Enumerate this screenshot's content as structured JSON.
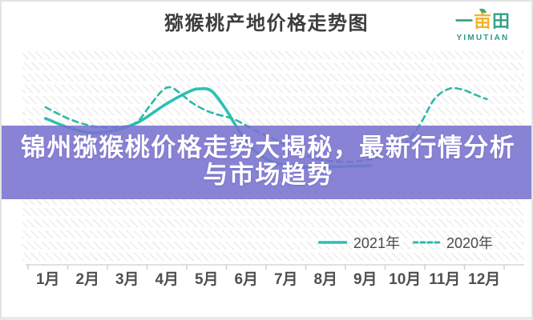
{
  "header": {
    "title": "猕猴桃产地价格走势图"
  },
  "logo": {
    "char1": "一",
    "char2": "亩",
    "char3": "田",
    "subtext": "YIMUTIAN",
    "green": "#33a288",
    "yellow": "#f2b32b",
    "teal": "#2d9b8a"
  },
  "overlay": {
    "line1": "锦州猕猴桃价格走势大揭秘，最新行情分析",
    "line2": "与市场趋势",
    "bg_rgba": "rgba(119,112,207,0.87)"
  },
  "axis_color": "#d8d8d8",
  "tick_color": "#cfcfcf",
  "month_label_color": "#4f4f4f",
  "chart_data": {
    "type": "line",
    "title": "猕猴桃产地价格走势图",
    "x_categories": [
      "1月",
      "2月",
      "3月",
      "4月",
      "5月",
      "6月",
      "7月",
      "8月",
      "9月",
      "10月",
      "11月",
      "12月"
    ],
    "y_axis_visible": false,
    "units": "relative price level (no y-axis scale shown in image)",
    "grid": false,
    "legend_position": "bottom-right",
    "series": [
      {
        "name": "2021年",
        "style": "solid",
        "color": "#29c1b2",
        "monthly_values": [
          6.4,
          4.7,
          5.5,
          8.2,
          10.0,
          3.7,
          0.4,
          0.3,
          0.5,
          null,
          null,
          null
        ],
        "points": [
          [
            0.94,
            6.4
          ],
          [
            1.55,
            5.2
          ],
          [
            2.1,
            4.6
          ],
          [
            2.66,
            4.9
          ],
          [
            3.27,
            5.9
          ],
          [
            3.98,
            8.2
          ],
          [
            4.58,
            9.8
          ],
          [
            4.84,
            10.1
          ],
          [
            5.13,
            9.8
          ],
          [
            5.49,
            7.5
          ],
          [
            5.9,
            4.2
          ],
          [
            6.3,
            2.0
          ],
          [
            6.7,
            0.9
          ],
          [
            7.21,
            0.4
          ],
          [
            7.81,
            0.3
          ],
          [
            8.52,
            0.4
          ],
          [
            9.13,
            0.5
          ]
        ]
      },
      {
        "name": "2020年",
        "style": "dashed",
        "color": "#2db9aa",
        "monthly_values": [
          7.8,
          5.5,
          5.6,
          10.1,
          7.2,
          5.5,
          3.0,
          1.2,
          1.1,
          3.3,
          9.7,
          8.8
        ],
        "points": [
          [
            0.94,
            7.8
          ],
          [
            1.55,
            6.3
          ],
          [
            2.16,
            5.4
          ],
          [
            2.76,
            5.3
          ],
          [
            3.23,
            5.9
          ],
          [
            3.57,
            8.0
          ],
          [
            3.87,
            9.8
          ],
          [
            4.08,
            10.3
          ],
          [
            4.32,
            9.6
          ],
          [
            4.68,
            8.2
          ],
          [
            5.13,
            7.1
          ],
          [
            5.69,
            6.3
          ],
          [
            6.3,
            4.7
          ],
          [
            6.8,
            3.6
          ],
          [
            7.31,
            2.1
          ],
          [
            7.81,
            1.3
          ],
          [
            8.32,
            1.0
          ],
          [
            8.93,
            1.1
          ],
          [
            9.53,
            2.0
          ],
          [
            10.04,
            3.4
          ],
          [
            10.4,
            5.8
          ],
          [
            10.74,
            8.8
          ],
          [
            11.11,
            10.1
          ],
          [
            11.45,
            10.0
          ],
          [
            11.75,
            9.4
          ],
          [
            12.06,
            8.8
          ]
        ]
      }
    ]
  }
}
